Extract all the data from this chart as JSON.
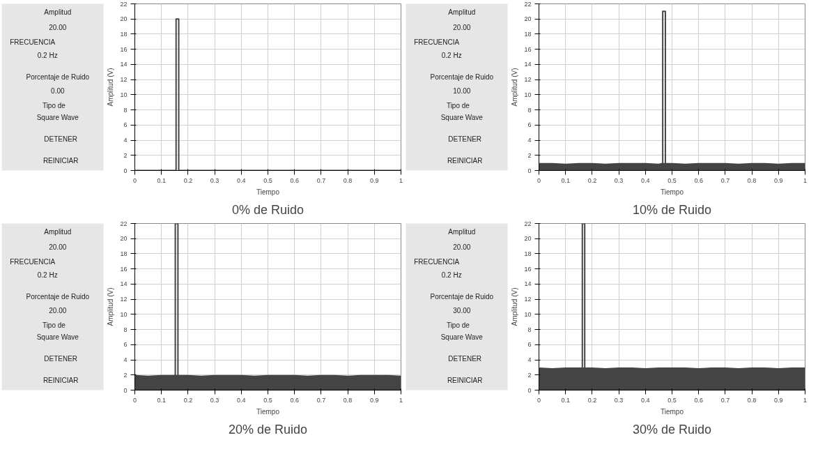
{
  "chart_data": [
    {
      "type": "other",
      "annotations": [
        "Amplitud",
        "20.00",
        "FRECUENCIA",
        "0.2 Hz",
        "Porcentaje de Ruido",
        "0.00",
        "Tipo de",
        "Square Wave",
        "DETENER",
        "REINICIAR"
      ]
    },
    {
      "type": "line",
      "xlabel": "Tiempo",
      "ylabel": "Amplitud (V)",
      "annotations": [
        "0% de Ruido"
      ],
      "xlim": [
        0,
        1
      ],
      "ylim": [
        0,
        22
      ],
      "xticks": [
        0,
        0.1,
        0.2,
        0.3,
        0.4,
        0.5,
        0.6,
        0.7,
        0.8,
        0.9,
        1
      ],
      "yticks": [
        0,
        2,
        4,
        6,
        8,
        10,
        12,
        14,
        16,
        18,
        20,
        22
      ],
      "grid": true,
      "series": [
        {
          "type": "line",
          "color": "#444444",
          "x": [
            0,
            0.155,
            0.155,
            0.165,
            0.165,
            1
          ],
          "values": [
            0,
            0,
            20,
            20,
            0,
            0
          ]
        }
      ]
    },
    {
      "type": "other",
      "annotations": [
        "Amplitud",
        "20.00",
        "FRECUENCIA",
        "0.2 Hz",
        "Porcentaje de Ruido",
        "10.00",
        "Tipo de",
        "Square Wave",
        "DETENER",
        "REINICIAR"
      ]
    },
    {
      "type": "line",
      "xlabel": "Tiempo",
      "ylabel": "Amplitud (V)",
      "annotations": [
        "10% de Ruido"
      ],
      "xlim": [
        0,
        1
      ],
      "ylim": [
        0,
        22
      ],
      "xticks": [
        0,
        0.1,
        0.2,
        0.3,
        0.4,
        0.5,
        0.6,
        0.7,
        0.8,
        0.9,
        1
      ],
      "yticks": [
        0,
        2,
        4,
        6,
        8,
        10,
        12,
        14,
        16,
        18,
        20,
        22
      ],
      "grid": true,
      "series": [
        {
          "type": "area",
          "color": "#444444",
          "x": [
            0,
            0.05,
            0.1,
            0.15,
            0.2,
            0.25,
            0.3,
            0.35,
            0.4,
            0.45,
            0.46,
            0.47,
            0.48,
            0.5,
            0.55,
            0.6,
            0.65,
            0.7,
            0.75,
            0.8,
            0.85,
            0.9,
            0.95,
            1
          ],
          "values": [
            1,
            1,
            0.9,
            1,
            1,
            0.9,
            1,
            1,
            1,
            0.9,
            1,
            null,
            1,
            1,
            0.9,
            1,
            1,
            1,
            0.9,
            1,
            1,
            0.9,
            1,
            1
          ]
        },
        {
          "type": "line",
          "color": "#444444",
          "x": [
            0.465,
            0.465,
            0.475,
            0.475
          ],
          "values": [
            0,
            21,
            21,
            0
          ]
        }
      ]
    },
    {
      "type": "other",
      "annotations": [
        "Amplitud",
        "20.00",
        "FRECUENCIA",
        "0.2 Hz",
        "Porcentaje de Ruido",
        "20.00",
        "Tipo de",
        "Square Wave",
        "DETENER",
        "REINICIAR"
      ]
    },
    {
      "type": "line",
      "xlabel": "Tiempo",
      "ylabel": "Amplitud (V)",
      "annotations": [
        "20% de Ruido"
      ],
      "xlim": [
        0,
        1
      ],
      "ylim": [
        0,
        22
      ],
      "xticks": [
        0,
        0.1,
        0.2,
        0.3,
        0.4,
        0.5,
        0.6,
        0.7,
        0.8,
        0.9,
        1
      ],
      "yticks": [
        0,
        2,
        4,
        6,
        8,
        10,
        12,
        14,
        16,
        18,
        20,
        22
      ],
      "grid": true,
      "series": [
        {
          "type": "area",
          "color": "#444444",
          "x": [
            0,
            0.05,
            0.1,
            0.147,
            0.157,
            0.167,
            0.2,
            0.25,
            0.3,
            0.35,
            0.4,
            0.45,
            0.5,
            0.55,
            0.6,
            0.65,
            0.7,
            0.75,
            0.8,
            0.85,
            0.9,
            0.95,
            1
          ],
          "values": [
            2,
            1.9,
            2,
            2,
            null,
            2,
            2,
            1.9,
            2,
            2,
            2,
            1.9,
            2,
            2,
            2,
            1.9,
            2,
            2,
            1.9,
            2,
            2,
            2,
            1.9
          ]
        },
        {
          "type": "line",
          "color": "#444444",
          "x": [
            0.152,
            0.152,
            0.162,
            0.162
          ],
          "values": [
            0,
            22,
            22,
            0
          ]
        }
      ]
    },
    {
      "type": "other",
      "annotations": [
        "Amplitud",
        "20.00",
        "FRECUENCIA",
        "0.2 Hz",
        "Porcentaje de Ruido",
        "30.00",
        "Tipo de",
        "Square Wave",
        "DETENER",
        "REINICIAR"
      ]
    },
    {
      "type": "line",
      "xlabel": "Tiempo",
      "ylabel": "Amplitud (V)",
      "annotations": [
        "30% de Ruido"
      ],
      "xlim": [
        0,
        1
      ],
      "ylim": [
        0,
        22
      ],
      "xticks": [
        0,
        0.1,
        0.2,
        0.3,
        0.4,
        0.5,
        0.6,
        0.7,
        0.8,
        0.9,
        1
      ],
      "yticks": [
        0,
        2,
        4,
        6,
        8,
        10,
        12,
        14,
        16,
        18,
        20,
        22
      ],
      "grid": true,
      "series": [
        {
          "type": "area",
          "color": "#444444",
          "x": [
            0,
            0.05,
            0.1,
            0.158,
            0.168,
            0.177,
            0.2,
            0.25,
            0.3,
            0.35,
            0.4,
            0.45,
            0.5,
            0.55,
            0.6,
            0.65,
            0.7,
            0.75,
            0.8,
            0.85,
            0.9,
            0.95,
            1
          ],
          "values": [
            3,
            2.9,
            3,
            3,
            null,
            3,
            3,
            2.9,
            3,
            3,
            2.9,
            3,
            3,
            3,
            2.9,
            3,
            3,
            2.9,
            3,
            3,
            2.9,
            3,
            3
          ]
        },
        {
          "type": "line",
          "color": "#444444",
          "x": [
            0.163,
            0.163,
            0.172,
            0.172
          ],
          "values": [
            0,
            22,
            22,
            0
          ]
        }
      ]
    }
  ]
}
